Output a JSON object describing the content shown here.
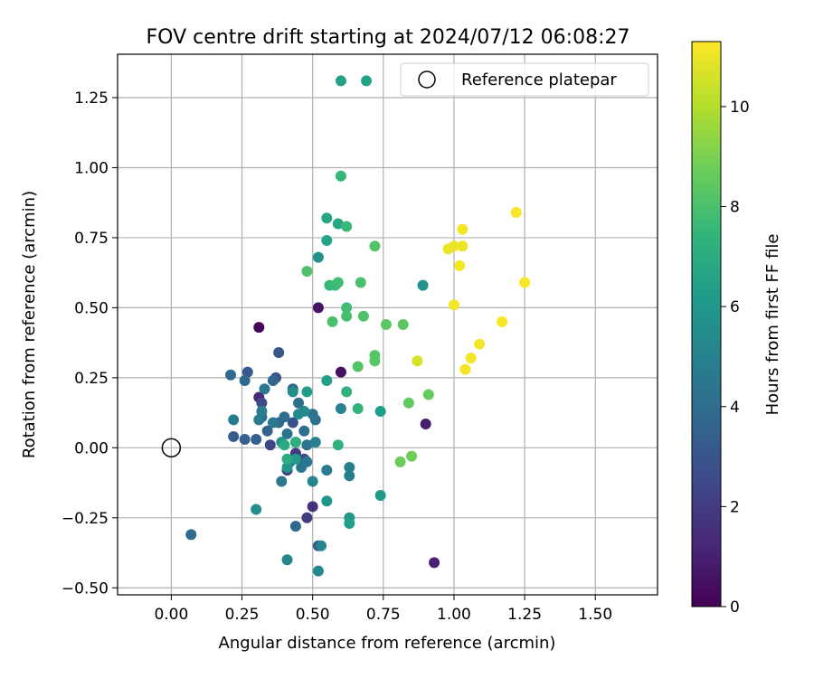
{
  "chart_data": {
    "type": "scatter",
    "title": "FOV centre drift starting at 2024/07/12 06:08:27",
    "xlabel": "Angular distance from reference (arcmin)",
    "ylabel": "Rotation from reference (arcmin)",
    "xlim": [
      -0.19,
      1.72
    ],
    "ylim": [
      -0.525,
      1.405
    ],
    "xticks": [
      0.0,
      0.25,
      0.5,
      0.75,
      1.0,
      1.25,
      1.5
    ],
    "xtick_labels": [
      "0.00",
      "0.25",
      "0.50",
      "0.75",
      "1.00",
      "1.25",
      "1.50"
    ],
    "yticks": [
      -0.5,
      -0.25,
      0.0,
      0.25,
      0.5,
      0.75,
      1.0,
      1.25
    ],
    "ytick_labels": [
      "−0.50",
      "−0.25",
      "0.00",
      "0.25",
      "0.50",
      "0.75",
      "1.00",
      "1.25"
    ],
    "grid": true,
    "legend": {
      "position": "top-right",
      "entries": [
        "Reference platepar"
      ]
    },
    "reference_point": {
      "x": 0.0,
      "y": 0.0
    },
    "colorbar": {
      "label": "Hours from first FF file",
      "range": [
        0,
        11.3
      ],
      "ticks": [
        0,
        2,
        4,
        6,
        8,
        10
      ],
      "tick_labels": [
        "0",
        "2",
        "4",
        "6",
        "8",
        "10"
      ],
      "colormap": "viridis",
      "colormap_stops": [
        "#440154",
        "#482878",
        "#3e4989",
        "#31688e",
        "#26828e",
        "#1f9e89",
        "#35b779",
        "#6ece58",
        "#b5de2b",
        "#fde725"
      ]
    },
    "marker_size_px": 12,
    "points": [
      {
        "x": 0.31,
        "y": 0.43,
        "h": 0.2
      },
      {
        "x": 0.6,
        "y": 0.27,
        "h": 0.5
      },
      {
        "x": 0.52,
        "y": 0.5,
        "h": 0.6
      },
      {
        "x": 0.9,
        "y": 0.085,
        "h": 0.9
      },
      {
        "x": 0.93,
        "y": -0.41,
        "h": 1.1
      },
      {
        "x": 0.31,
        "y": 0.18,
        "h": 1.3
      },
      {
        "x": 0.5,
        "y": -0.21,
        "h": 1.6
      },
      {
        "x": 0.48,
        "y": -0.25,
        "h": 2.0
      },
      {
        "x": 0.44,
        "y": -0.02,
        "h": 1.9
      },
      {
        "x": 0.41,
        "y": -0.08,
        "h": 2.2
      },
      {
        "x": 0.35,
        "y": 0.01,
        "h": 2.4
      },
      {
        "x": 0.32,
        "y": 0.16,
        "h": 2.6
      },
      {
        "x": 0.47,
        "y": -0.04,
        "h": 2.7
      },
      {
        "x": 0.37,
        "y": 0.25,
        "h": 2.8
      },
      {
        "x": 0.43,
        "y": 0.09,
        "h": 2.9
      },
      {
        "x": 0.52,
        "y": -0.35,
        "h": 3.0
      },
      {
        "x": 0.38,
        "y": 0.34,
        "h": 3.1
      },
      {
        "x": 0.27,
        "y": 0.27,
        "h": 3.2
      },
      {
        "x": 0.22,
        "y": 0.04,
        "h": 3.3
      },
      {
        "x": 0.26,
        "y": 0.03,
        "h": 3.4
      },
      {
        "x": 0.3,
        "y": 0.03,
        "h": 3.5
      },
      {
        "x": 0.32,
        "y": 0.11,
        "h": 3.6
      },
      {
        "x": 0.34,
        "y": 0.06,
        "h": 3.6
      },
      {
        "x": 0.36,
        "y": 0.24,
        "h": 3.7
      },
      {
        "x": 0.43,
        "y": 0.21,
        "h": 3.7
      },
      {
        "x": 0.44,
        "y": -0.28,
        "h": 3.8
      },
      {
        "x": 0.21,
        "y": 0.26,
        "h": 3.8
      },
      {
        "x": 0.26,
        "y": 0.24,
        "h": 3.9
      },
      {
        "x": 0.07,
        "y": -0.31,
        "h": 3.9
      },
      {
        "x": 0.38,
        "y": 0.09,
        "h": 4.0
      },
      {
        "x": 0.4,
        "y": 0.11,
        "h": 4.0
      },
      {
        "x": 0.45,
        "y": 0.16,
        "h": 4.1
      },
      {
        "x": 0.47,
        "y": 0.06,
        "h": 4.1
      },
      {
        "x": 0.5,
        "y": 0.12,
        "h": 4.2
      },
      {
        "x": 0.51,
        "y": 0.1,
        "h": 4.2
      },
      {
        "x": 0.48,
        "y": 0.01,
        "h": 4.3
      },
      {
        "x": 0.41,
        "y": 0.05,
        "h": 4.3
      },
      {
        "x": 0.42,
        "y": -0.05,
        "h": 4.4
      },
      {
        "x": 0.46,
        "y": -0.07,
        "h": 4.4
      },
      {
        "x": 0.48,
        "y": -0.05,
        "h": 4.5
      },
      {
        "x": 0.39,
        "y": -0.12,
        "h": 4.5
      },
      {
        "x": 0.33,
        "y": 0.21,
        "h": 4.6
      },
      {
        "x": 0.36,
        "y": 0.09,
        "h": 4.6
      },
      {
        "x": 0.22,
        "y": 0.1,
        "h": 4.7
      },
      {
        "x": 0.32,
        "y": 0.13,
        "h": 4.7
      },
      {
        "x": 0.31,
        "y": 0.1,
        "h": 4.8
      },
      {
        "x": 0.55,
        "y": -0.08,
        "h": 4.8
      },
      {
        "x": 0.63,
        "y": -0.1,
        "h": 4.9
      },
      {
        "x": 0.63,
        "y": -0.07,
        "h": 4.9
      },
      {
        "x": 0.51,
        "y": 0.02,
        "h": 5.0
      },
      {
        "x": 0.6,
        "y": 0.14,
        "h": 5.0
      },
      {
        "x": 0.5,
        "y": -0.12,
        "h": 5.1
      },
      {
        "x": 0.53,
        "y": -0.35,
        "h": 5.1
      },
      {
        "x": 0.41,
        "y": -0.4,
        "h": 5.2
      },
      {
        "x": 0.52,
        "y": -0.44,
        "h": 5.2
      },
      {
        "x": 0.47,
        "y": 0.13,
        "h": 5.3
      },
      {
        "x": 0.45,
        "y": 0.12,
        "h": 5.4
      },
      {
        "x": 0.43,
        "y": 0.2,
        "h": 5.5
      },
      {
        "x": 0.3,
        "y": -0.22,
        "h": 5.6
      },
      {
        "x": 0.39,
        "y": 0.02,
        "h": 5.7
      },
      {
        "x": 0.52,
        "y": 0.68,
        "h": 5.8
      },
      {
        "x": 0.89,
        "y": 0.58,
        "h": 5.8
      },
      {
        "x": 0.63,
        "y": -0.25,
        "h": 5.9
      },
      {
        "x": 0.55,
        "y": -0.19,
        "h": 5.9
      },
      {
        "x": 0.44,
        "y": 0.02,
        "h": 6.0
      },
      {
        "x": 0.41,
        "y": -0.07,
        "h": 6.0
      },
      {
        "x": 0.44,
        "y": -0.04,
        "h": 6.1
      },
      {
        "x": 0.74,
        "y": -0.17,
        "h": 6.2
      },
      {
        "x": 0.74,
        "y": 0.13,
        "h": 6.3
      },
      {
        "x": 0.48,
        "y": 0.2,
        "h": 6.3
      },
      {
        "x": 0.55,
        "y": 0.24,
        "h": 6.4
      },
      {
        "x": 0.63,
        "y": -0.27,
        "h": 6.4
      },
      {
        "x": 0.6,
        "y": 1.31,
        "h": 6.5
      },
      {
        "x": 0.69,
        "y": 1.31,
        "h": 6.5
      },
      {
        "x": 0.55,
        "y": 0.74,
        "h": 6.6
      },
      {
        "x": 0.55,
        "y": 0.82,
        "h": 6.7
      },
      {
        "x": 0.59,
        "y": 0.8,
        "h": 6.8
      },
      {
        "x": 0.4,
        "y": 0.01,
        "h": 6.9
      },
      {
        "x": 0.41,
        "y": -0.04,
        "h": 7.0
      },
      {
        "x": 0.44,
        "y": 0.02,
        "h": 7.1
      },
      {
        "x": 0.59,
        "y": 0.01,
        "h": 7.2
      },
      {
        "x": 0.62,
        "y": 0.2,
        "h": 7.3
      },
      {
        "x": 0.66,
        "y": 0.14,
        "h": 7.4
      },
      {
        "x": 0.6,
        "y": 0.97,
        "h": 7.5
      },
      {
        "x": 0.62,
        "y": 0.79,
        "h": 7.6
      },
      {
        "x": 0.56,
        "y": 0.58,
        "h": 7.6
      },
      {
        "x": 0.58,
        "y": 0.58,
        "h": 7.7
      },
      {
        "x": 0.59,
        "y": 0.59,
        "h": 7.8
      },
      {
        "x": 0.62,
        "y": 0.5,
        "h": 7.8
      },
      {
        "x": 0.62,
        "y": 0.47,
        "h": 7.9
      },
      {
        "x": 0.57,
        "y": 0.45,
        "h": 8.0
      },
      {
        "x": 0.67,
        "y": 0.59,
        "h": 8.0
      },
      {
        "x": 0.68,
        "y": 0.47,
        "h": 8.1
      },
      {
        "x": 0.48,
        "y": 0.63,
        "h": 8.1
      },
      {
        "x": 0.72,
        "y": 0.72,
        "h": 8.2
      },
      {
        "x": 0.66,
        "y": 0.29,
        "h": 8.2
      },
      {
        "x": 0.72,
        "y": 0.31,
        "h": 8.3
      },
      {
        "x": 0.72,
        "y": 0.33,
        "h": 8.3
      },
      {
        "x": 0.76,
        "y": 0.44,
        "h": 8.4
      },
      {
        "x": 0.82,
        "y": 0.44,
        "h": 8.4
      },
      {
        "x": 0.84,
        "y": 0.16,
        "h": 8.5
      },
      {
        "x": 0.91,
        "y": 0.19,
        "h": 8.6
      },
      {
        "x": 0.81,
        "y": -0.05,
        "h": 8.7
      },
      {
        "x": 0.85,
        "y": -0.03,
        "h": 8.8
      },
      {
        "x": 0.87,
        "y": 0.31,
        "h": 10.6
      },
      {
        "x": 0.98,
        "y": 0.71,
        "h": 11.0
      },
      {
        "x": 1.0,
        "y": 0.72,
        "h": 11.0
      },
      {
        "x": 1.03,
        "y": 0.72,
        "h": 11.0
      },
      {
        "x": 1.03,
        "y": 0.78,
        "h": 11.1
      },
      {
        "x": 1.02,
        "y": 0.65,
        "h": 11.1
      },
      {
        "x": 1.0,
        "y": 0.51,
        "h": 11.1
      },
      {
        "x": 1.04,
        "y": 0.28,
        "h": 11.1
      },
      {
        "x": 1.06,
        "y": 0.32,
        "h": 11.1
      },
      {
        "x": 1.09,
        "y": 0.37,
        "h": 11.1
      },
      {
        "x": 1.17,
        "y": 0.45,
        "h": 11.2
      },
      {
        "x": 1.22,
        "y": 0.84,
        "h": 11.2
      },
      {
        "x": 1.25,
        "y": 0.59,
        "h": 11.2
      }
    ]
  }
}
